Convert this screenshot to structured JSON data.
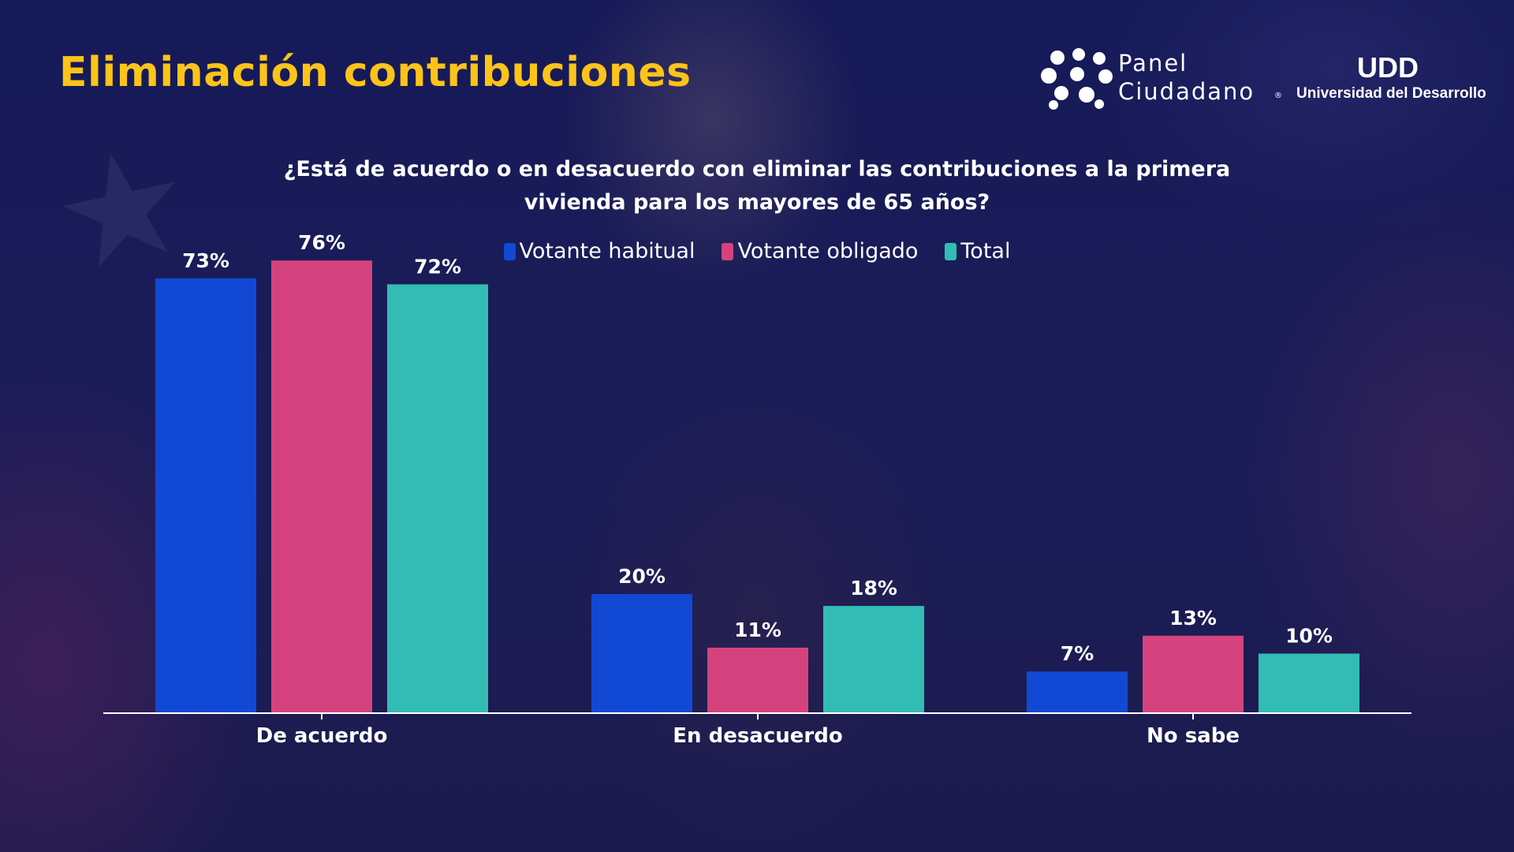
{
  "page": {
    "title": "Eliminación contribuciones",
    "question_lines": [
      "¿Está de acuerdo o en desacuerdo con eliminar las contribuciones a la primera",
      "vivienda para los mayores de 65 años?"
    ]
  },
  "logos": {
    "panel": {
      "line1": "Panel",
      "line2": "Ciudadano",
      "reg": "®"
    },
    "udd": {
      "mark": "UDD",
      "subtitle": "Universidad del Desarrollo"
    }
  },
  "colors": {
    "title": "#fcc419",
    "votante_habitual": "#1249d4",
    "votante_obligado": "#d4437e",
    "total": "#33bcb4"
  },
  "chart_data": {
    "type": "bar",
    "title": "¿Está de acuerdo o en desacuerdo con eliminar las contribuciones a la primera vivienda para los mayores de 65 años?",
    "categories": [
      "De acuerdo",
      "En desacuerdo",
      "No sabe"
    ],
    "series": [
      {
        "name": "Votante habitual",
        "values": [
          73,
          20,
          7
        ],
        "color": "#1249d4"
      },
      {
        "name": "Votante obligado",
        "values": [
          76,
          11,
          13
        ],
        "color": "#d4437e"
      },
      {
        "name": "Total",
        "values": [
          72,
          18,
          10
        ],
        "color": "#33bcb4"
      }
    ],
    "value_suffix": "%",
    "xlabel": "",
    "ylabel": "",
    "ylim": [
      0,
      80
    ],
    "grid": false,
    "legend": "top-center"
  }
}
